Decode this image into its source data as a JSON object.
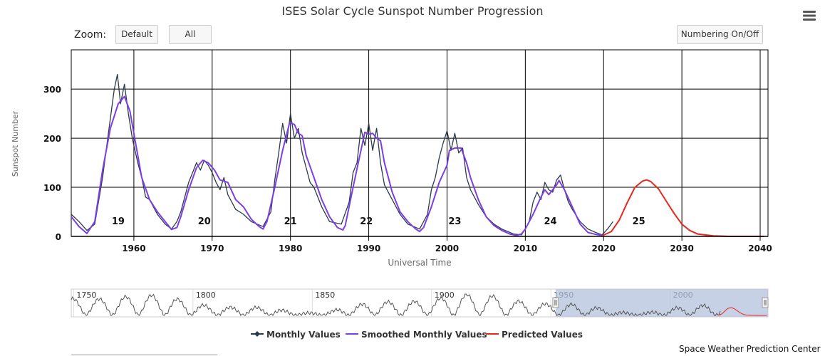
{
  "chart_title": "ISES Solar Cycle Sunspot Number Progression",
  "controls": {
    "zoom_label": "Zoom:",
    "default_label": "Default",
    "all_label": "All",
    "numbering_label": "Numbering On/Off"
  },
  "footer": "Space Weather Prediction Center",
  "colors": {
    "monthly": "#2b3a4a",
    "smoothed": "#7b3fe4",
    "predicted": "#e8281e",
    "grid": "#000000",
    "navigator_fill": "#b4c1de"
  },
  "chart_data": {
    "type": "line",
    "xlabel": "Universal Time",
    "ylabel": "Sunspot Number",
    "xlim": [
      1952,
      2041
    ],
    "ylim": [
      0,
      380
    ],
    "x_ticks": [
      1960,
      1970,
      1980,
      1990,
      2000,
      2010,
      2020,
      2030,
      2040
    ],
    "y_ticks": [
      0,
      100,
      200,
      300
    ],
    "grid": true,
    "legend": "bottom-center",
    "cycle_labels": [
      {
        "label": "19",
        "year": 1958
      },
      {
        "label": "20",
        "year": 1969
      },
      {
        "label": "21",
        "year": 1980
      },
      {
        "label": "22",
        "year": 1989.7
      },
      {
        "label": "23",
        "year": 2001
      },
      {
        "label": "24",
        "year": 2013.2
      },
      {
        "label": "25",
        "year": 2024.5
      }
    ],
    "series": [
      {
        "name": "Monthly Values",
        "color": "#2b3a4a",
        "x": [
          1952,
          1953,
          1954,
          1955,
          1956,
          1956.5,
          1957,
          1957.5,
          1957.9,
          1958.3,
          1958.8,
          1959.3,
          1959.8,
          1960.5,
          1961,
          1961.5,
          1962,
          1963,
          1964,
          1964.8,
          1965.5,
          1966,
          1967,
          1968,
          1968.5,
          1969,
          1969.5,
          1970,
          1970.5,
          1971,
          1971.5,
          1972,
          1972.5,
          1973,
          1974,
          1975,
          1976.5,
          1977.5,
          1978,
          1978.5,
          1979,
          1979.5,
          1980,
          1980.5,
          1981,
          1981.5,
          1982,
          1982.5,
          1983,
          1984,
          1985,
          1986.5,
          1987.5,
          1988,
          1988.5,
          1989,
          1989.5,
          1990,
          1990.5,
          1991,
          1991.5,
          1992,
          1992.5,
          1993,
          1994,
          1995,
          1996.5,
          1997.5,
          1998,
          1998.5,
          1999,
          1999.5,
          2000,
          2000.5,
          2001,
          2001.5,
          2002,
          2002.5,
          2003,
          2004,
          2005,
          2006,
          2007,
          2008.5,
          2009.5,
          2010,
          2010.5,
          2011,
          2011.5,
          2012,
          2012.5,
          2013,
          2013.5,
          2014,
          2014.5,
          2015,
          2015.5,
          2016,
          2017,
          2018,
          2019,
          2019.8,
          2020.5,
          2021.2
        ],
        "values": [
          45,
          30,
          12,
          25,
          120,
          180,
          240,
          300,
          330,
          270,
          310,
          250,
          200,
          150,
          120,
          80,
          75,
          45,
          25,
          15,
          30,
          50,
          110,
          150,
          135,
          155,
          145,
          130,
          110,
          95,
          120,
          85,
          70,
          55,
          45,
          30,
          20,
          50,
          115,
          170,
          230,
          190,
          250,
          200,
          220,
          170,
          140,
          110,
          100,
          60,
          30,
          25,
          70,
          130,
          150,
          220,
          185,
          230,
          175,
          220,
          150,
          105,
          90,
          75,
          45,
          25,
          15,
          45,
          95,
          120,
          160,
          190,
          215,
          175,
          210,
          170,
          180,
          120,
          95,
          65,
          40,
          25,
          15,
          5,
          3,
          15,
          30,
          70,
          90,
          75,
          110,
          95,
          90,
          115,
          125,
          95,
          70,
          55,
          30,
          15,
          8,
          3,
          15,
          30
        ]
      },
      {
        "name": "Smoothed Monthly Values",
        "color": "#7b3fe4",
        "x": [
          1952,
          1953,
          1954,
          1955,
          1956,
          1957,
          1958,
          1958.8,
          1959.5,
          1960,
          1961,
          1962,
          1963,
          1964,
          1964.8,
          1965.5,
          1966,
          1967,
          1968,
          1968.8,
          1969.5,
          1970.3,
          1971,
          1972,
          1973,
          1974,
          1975,
          1976,
          1976.5,
          1977,
          1978,
          1979,
          1979.9,
          1980.5,
          1981,
          1981.5,
          1982,
          1983,
          1984,
          1985,
          1986,
          1986.7,
          1987,
          1988,
          1989,
          1989.5,
          1990,
          1990.5,
          1991,
          1991.5,
          1992,
          1993,
          1994,
          1995,
          1996,
          1996.5,
          1997,
          1998,
          1999,
          2000,
          2000.3,
          2001,
          2001.8,
          2002.5,
          2003,
          2004,
          2005,
          2006,
          2007,
          2008,
          2008.9,
          2009.5,
          2010,
          2011,
          2012,
          2012.5,
          2013,
          2014,
          2014.3,
          2015,
          2016,
          2017,
          2018,
          2019,
          2019.9
        ],
        "values": [
          40,
          20,
          6,
          30,
          135,
          220,
          270,
          285,
          255,
          210,
          120,
          75,
          50,
          30,
          14,
          18,
          40,
          95,
          140,
          155,
          150,
          135,
          115,
          110,
          75,
          60,
          35,
          20,
          15,
          30,
          100,
          175,
          232,
          228,
          210,
          205,
          165,
          120,
          75,
          40,
          18,
          13,
          22,
          100,
          175,
          212,
          208,
          210,
          200,
          195,
          150,
          90,
          50,
          30,
          15,
          10,
          18,
          60,
          110,
          145,
          175,
          180,
          180,
          150,
          120,
          75,
          40,
          22,
          12,
          5,
          2,
          5,
          15,
          45,
          80,
          95,
          85,
          105,
          114,
          95,
          60,
          25,
          8,
          4,
          2
        ]
      },
      {
        "name": "Predicted Values",
        "color": "#e8281e",
        "x": [
          2019.9,
          2021,
          2022,
          2023,
          2024,
          2025,
          2025.5,
          2026,
          2027,
          2028,
          2029,
          2030,
          2031,
          2032,
          2034,
          2036,
          2038,
          2040.5
        ],
        "values": [
          2,
          10,
          33,
          68,
          100,
          113,
          115,
          112,
          97,
          72,
          47,
          25,
          12,
          5,
          1,
          0,
          0,
          0
        ]
      }
    ]
  },
  "navigator": {
    "tick_labels": [
      "1750",
      "1800",
      "1850",
      "1900",
      "1950",
      "2000"
    ],
    "tick_years": [
      1750,
      1800,
      1850,
      1900,
      1950,
      2000
    ],
    "xlim": [
      1749,
      2041
    ],
    "selected_range": [
      1952,
      2041
    ]
  }
}
